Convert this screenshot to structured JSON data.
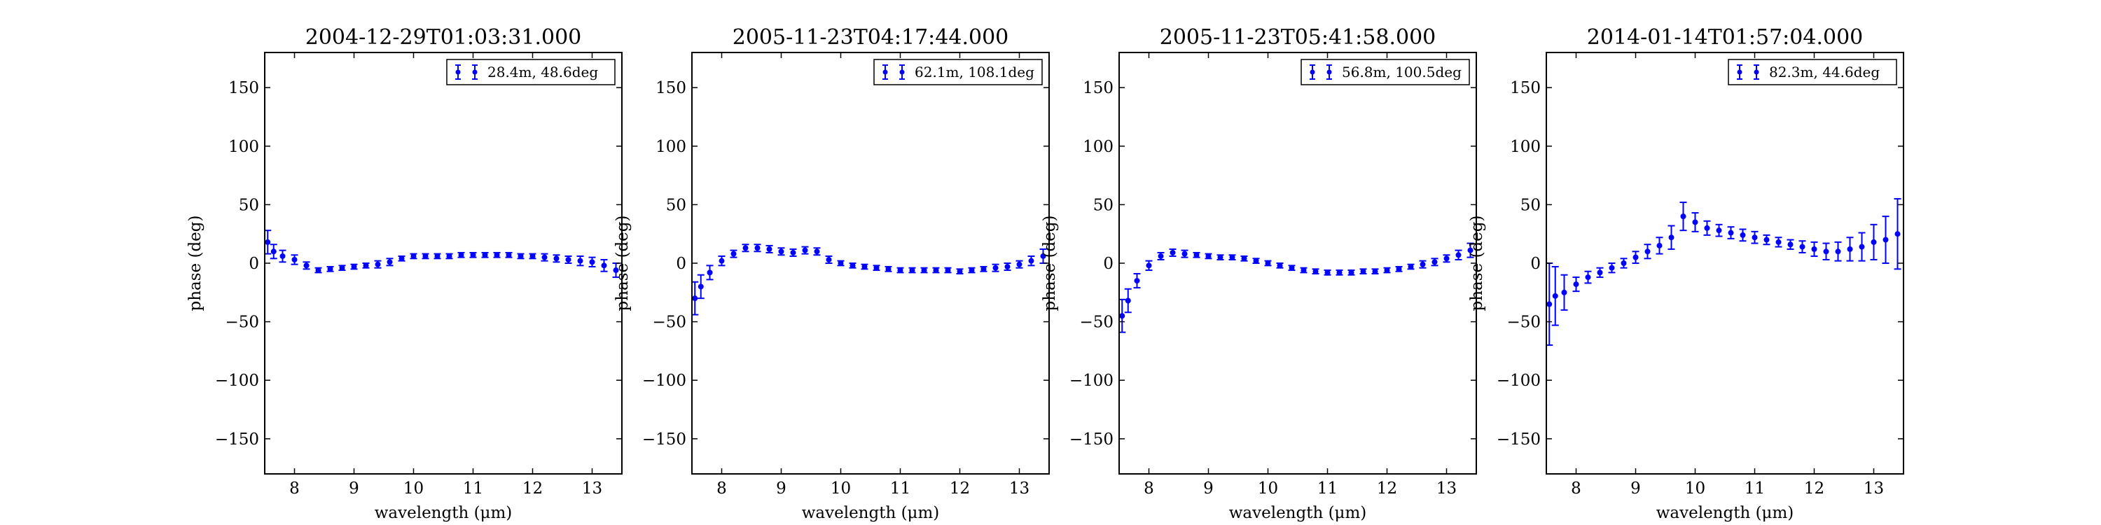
{
  "figure": {
    "background": "#ffffff",
    "series_color": "#0000ff"
  },
  "chart_data": [
    {
      "type": "scatter",
      "title": "2004-12-29T01:03:31.000",
      "xlabel": "wavelength (μm)",
      "ylabel": "phase (deg)",
      "xlim": [
        7.5,
        13.5
      ],
      "ylim": [
        -180,
        180
      ],
      "xticks": [
        8,
        9,
        10,
        11,
        12,
        13
      ],
      "yticks": [
        -150,
        -100,
        -50,
        0,
        50,
        100,
        150
      ],
      "ytick_labels": [
        "−150",
        "−100",
        "−50",
        "0",
        "50",
        "100",
        "150"
      ],
      "grid": false,
      "legend": {
        "position": "top-right",
        "entries": [
          "28.4m, 48.6deg"
        ]
      },
      "series": [
        {
          "name": "28.4m, 48.6deg",
          "color": "#0000ff",
          "x": [
            7.55,
            7.65,
            7.8,
            8.0,
            8.2,
            8.4,
            8.6,
            8.8,
            9.0,
            9.2,
            9.4,
            9.6,
            9.8,
            10.0,
            10.2,
            10.4,
            10.6,
            10.8,
            11.0,
            11.2,
            11.4,
            11.6,
            11.8,
            12.0,
            12.2,
            12.4,
            12.6,
            12.8,
            13.0,
            13.2,
            13.4
          ],
          "y": [
            18,
            10,
            6,
            3,
            -2,
            -6,
            -5,
            -4,
            -3,
            -2,
            -1,
            1,
            4,
            6,
            6,
            6,
            6,
            7,
            7,
            7,
            7,
            7,
            6,
            6,
            5,
            4,
            3,
            2,
            1,
            -2,
            -6
          ],
          "yerr": [
            10,
            6,
            5,
            4,
            3,
            2,
            2,
            2,
            2,
            2,
            3,
            3,
            2,
            2,
            2,
            2,
            2,
            2,
            2,
            2,
            2,
            2,
            2,
            2,
            3,
            3,
            3,
            4,
            4,
            5,
            6
          ]
        }
      ]
    },
    {
      "type": "scatter",
      "title": "2005-11-23T04:17:44.000",
      "xlabel": "wavelength (μm)",
      "ylabel": "phase (deg)",
      "xlim": [
        7.5,
        13.5
      ],
      "ylim": [
        -180,
        180
      ],
      "xticks": [
        8,
        9,
        10,
        11,
        12,
        13
      ],
      "yticks": [
        -150,
        -100,
        -50,
        0,
        50,
        100,
        150
      ],
      "ytick_labels": [
        "−150",
        "−100",
        "−50",
        "0",
        "50",
        "100",
        "150"
      ],
      "grid": false,
      "legend": {
        "position": "top-right",
        "entries": [
          "62.1m, 108.1deg"
        ]
      },
      "series": [
        {
          "name": "62.1m, 108.1deg",
          "color": "#0000ff",
          "x": [
            7.55,
            7.65,
            7.8,
            8.0,
            8.2,
            8.4,
            8.6,
            8.8,
            9.0,
            9.2,
            9.4,
            9.6,
            9.8,
            10.0,
            10.2,
            10.4,
            10.6,
            10.8,
            11.0,
            11.2,
            11.4,
            11.6,
            11.8,
            12.0,
            12.2,
            12.4,
            12.6,
            12.8,
            13.0,
            13.2,
            13.4
          ],
          "y": [
            -30,
            -20,
            -8,
            2,
            8,
            13,
            13,
            12,
            10,
            9,
            11,
            10,
            3,
            0,
            -2,
            -3,
            -4,
            -5,
            -6,
            -6,
            -6,
            -6,
            -6,
            -7,
            -6,
            -5,
            -4,
            -3,
            -1,
            2,
            6
          ],
          "yerr": [
            14,
            10,
            6,
            4,
            3,
            3,
            3,
            3,
            3,
            3,
            3,
            3,
            3,
            2,
            2,
            2,
            2,
            2,
            2,
            2,
            2,
            2,
            2,
            2,
            2,
            2,
            3,
            3,
            3,
            4,
            6
          ]
        }
      ]
    },
    {
      "type": "scatter",
      "title": "2005-11-23T05:41:58.000",
      "xlabel": "wavelength (μm)",
      "ylabel": "phase (deg)",
      "xlim": [
        7.5,
        13.5
      ],
      "ylim": [
        -180,
        180
      ],
      "xticks": [
        8,
        9,
        10,
        11,
        12,
        13
      ],
      "yticks": [
        -150,
        -100,
        -50,
        0,
        50,
        100,
        150
      ],
      "ytick_labels": [
        "−150",
        "−100",
        "−50",
        "0",
        "50",
        "100",
        "150"
      ],
      "grid": false,
      "legend": {
        "position": "top-right",
        "entries": [
          "56.8m, 100.5deg"
        ]
      },
      "series": [
        {
          "name": "56.8m, 100.5deg",
          "color": "#0000ff",
          "x": [
            7.55,
            7.65,
            7.8,
            8.0,
            8.2,
            8.4,
            8.6,
            8.8,
            9.0,
            9.2,
            9.4,
            9.6,
            9.8,
            10.0,
            10.2,
            10.4,
            10.6,
            10.8,
            11.0,
            11.2,
            11.4,
            11.6,
            11.8,
            12.0,
            12.2,
            12.4,
            12.6,
            12.8,
            13.0,
            13.2,
            13.4
          ],
          "y": [
            -45,
            -32,
            -15,
            -2,
            6,
            9,
            8,
            7,
            6,
            5,
            5,
            4,
            2,
            0,
            -2,
            -4,
            -6,
            -7,
            -8,
            -8,
            -8,
            -7,
            -7,
            -6,
            -5,
            -3,
            -1,
            1,
            4,
            7,
            11
          ],
          "yerr": [
            14,
            10,
            6,
            4,
            3,
            3,
            3,
            2,
            2,
            2,
            2,
            2,
            2,
            2,
            2,
            2,
            2,
            2,
            2,
            2,
            2,
            2,
            2,
            2,
            2,
            2,
            3,
            3,
            3,
            4,
            6
          ]
        }
      ]
    },
    {
      "type": "scatter",
      "title": "2014-01-14T01:57:04.000",
      "xlabel": "wavelength (μm)",
      "ylabel": "phase (deg)",
      "xlim": [
        7.5,
        13.5
      ],
      "ylim": [
        -180,
        180
      ],
      "xticks": [
        8,
        9,
        10,
        11,
        12,
        13
      ],
      "yticks": [
        -150,
        -100,
        -50,
        0,
        50,
        100,
        150
      ],
      "ytick_labels": [
        "−150",
        "−100",
        "−50",
        "0",
        "50",
        "100",
        "150"
      ],
      "grid": false,
      "legend": {
        "position": "top-right",
        "entries": [
          "82.3m, 44.6deg"
        ]
      },
      "series": [
        {
          "name": "82.3m, 44.6deg",
          "color": "#0000ff",
          "x": [
            7.55,
            7.65,
            7.8,
            8.0,
            8.2,
            8.4,
            8.6,
            8.8,
            9.0,
            9.2,
            9.4,
            9.6,
            9.8,
            10.0,
            10.2,
            10.4,
            10.6,
            10.8,
            11.0,
            11.2,
            11.4,
            11.6,
            11.8,
            12.0,
            12.2,
            12.4,
            12.6,
            12.8,
            13.0,
            13.2,
            13.4
          ],
          "y": [
            -35,
            -28,
            -25,
            -18,
            -12,
            -8,
            -4,
            0,
            5,
            10,
            15,
            22,
            40,
            35,
            30,
            28,
            26,
            24,
            22,
            20,
            18,
            16,
            14,
            12,
            10,
            10,
            12,
            14,
            18,
            20,
            25
          ],
          "yerr": [
            35,
            25,
            15,
            6,
            5,
            4,
            4,
            4,
            5,
            6,
            7,
            10,
            12,
            8,
            6,
            5,
            5,
            5,
            5,
            4,
            4,
            4,
            5,
            6,
            7,
            8,
            10,
            12,
            15,
            20,
            30
          ]
        }
      ]
    }
  ]
}
